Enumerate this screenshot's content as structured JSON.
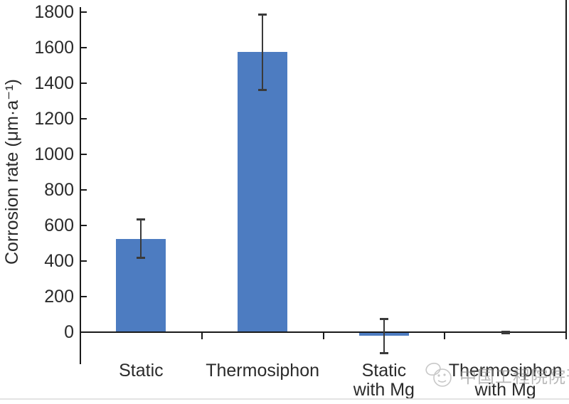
{
  "chart_data": {
    "type": "bar",
    "title": "",
    "xlabel": "",
    "ylabel": "Corrosion rate (μm·a⁻¹)",
    "categories": [
      "Static",
      "Thermosiphon",
      "Static with Mg",
      "Thermosiphon with Mg"
    ],
    "category_display": [
      "Static",
      "Thermosiphon",
      "Static\nwith Mg",
      "Thermosiphon\nwith Mg"
    ],
    "values": [
      525,
      1575,
      -20,
      0
    ],
    "error_bars": [
      {
        "low": 415,
        "high": 635
      },
      {
        "low": 1360,
        "high": 1790
      },
      {
        "low": -120,
        "high": 75
      },
      {
        "low": -6,
        "high": 6
      }
    ],
    "yticks": [
      0,
      200,
      400,
      600,
      800,
      1000,
      1200,
      1400,
      1600,
      1800
    ],
    "ylim": [
      -180,
      1830
    ],
    "grid": false,
    "legend": null,
    "bar_color": "#4d7cc1",
    "error_color": "#3a3a3a",
    "axis_color": "#1a1a1a"
  },
  "watermark": {
    "text": "中国工程院院刊"
  }
}
